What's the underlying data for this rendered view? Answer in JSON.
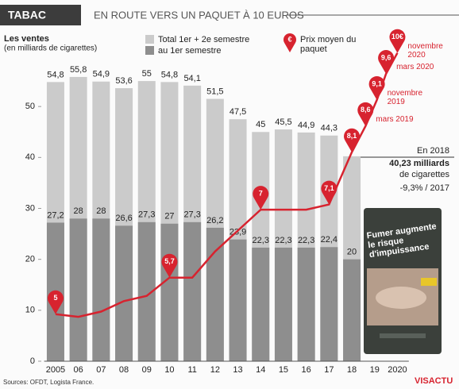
{
  "chart_data": {
    "type": "bar",
    "kicker": "TABAC",
    "title": "EN ROUTE VERS UN PAQUET À 10 EUROS",
    "y_label": "Les ventes",
    "y_sublabel": "(en milliards de cigarettes)",
    "categories": [
      "2005",
      "06",
      "07",
      "08",
      "09",
      "10",
      "11",
      "12",
      "13",
      "14",
      "15",
      "16",
      "17",
      "18",
      "19",
      "2020"
    ],
    "xlim": [
      2004.5,
      2020.5
    ],
    "ylim": [
      0,
      60
    ],
    "yticks": [
      0,
      10,
      20,
      30,
      40,
      50
    ],
    "y2lim": [
      4.1,
      9.95
    ],
    "grid": false,
    "series": [
      {
        "name": "Total 1er + 2e semestre",
        "type": "bar",
        "color": "#cbcbcb",
        "values": [
          54.8,
          55.8,
          54.9,
          53.6,
          55,
          54.8,
          54.1,
          51.5,
          47.5,
          45,
          45.5,
          44.9,
          44.3,
          40.23,
          null,
          null
        ],
        "value_labels": [
          "54,8",
          "55,8",
          "54,9",
          "53,6",
          "55",
          "54,8",
          "54,1",
          "51,5",
          "47,5",
          "45",
          "45,5",
          "44,9",
          "44,3",
          null,
          null,
          null
        ]
      },
      {
        "name": "au 1er semestre",
        "type": "bar",
        "color": "#8e8e8e",
        "values": [
          27.2,
          28,
          28,
          26.6,
          27.3,
          27,
          27.3,
          26.2,
          23.9,
          22.3,
          22.3,
          22.3,
          22.4,
          20,
          null,
          null
        ],
        "value_labels": [
          "27,2",
          "28",
          "28",
          "26,6",
          "27,3",
          "27",
          "27,3",
          "26,2",
          "23,9",
          "22,3",
          "22,3",
          "22,3",
          "22,4",
          "20",
          null,
          null
        ]
      },
      {
        "name": "Prix moyen du paquet",
        "type": "line",
        "axis": "y2",
        "color": "#d7232f",
        "x": [
          2005,
          2006,
          2007,
          2008,
          2009,
          2010,
          2011,
          2012,
          2013,
          2014,
          2015,
          2016,
          2017,
          2018,
          2018.6,
          2019.1,
          2019.5,
          2020
        ],
        "values": [
          5,
          4.95,
          5.05,
          5.25,
          5.35,
          5.7,
          5.7,
          6.2,
          6.6,
          7,
          7,
          7,
          7.1,
          8.1,
          8.6,
          9.1,
          9.6,
          10
        ],
        "value_labels": [
          "5",
          null,
          null,
          null,
          null,
          "5,7",
          null,
          null,
          null,
          "7",
          null,
          null,
          "7,1",
          "8,1",
          "8,6",
          "9,1",
          "9,6",
          "10€"
        ],
        "date_labels": [
          null,
          null,
          null,
          null,
          null,
          null,
          null,
          null,
          null,
          null,
          null,
          null,
          null,
          null,
          "mars 2019",
          "novembre 2019",
          "mars 2020",
          "novembre 2020"
        ]
      }
    ],
    "annotation": {
      "line1": "En 2018",
      "line2": "40,23 milliards",
      "line3": "de cigarettes",
      "line4": "-9,3% / 2017"
    },
    "pack_warning": "Fumer augmente le risque d'impuissance",
    "source": "Sources: OFDT, Logista France.",
    "logo": "VISACTU"
  }
}
